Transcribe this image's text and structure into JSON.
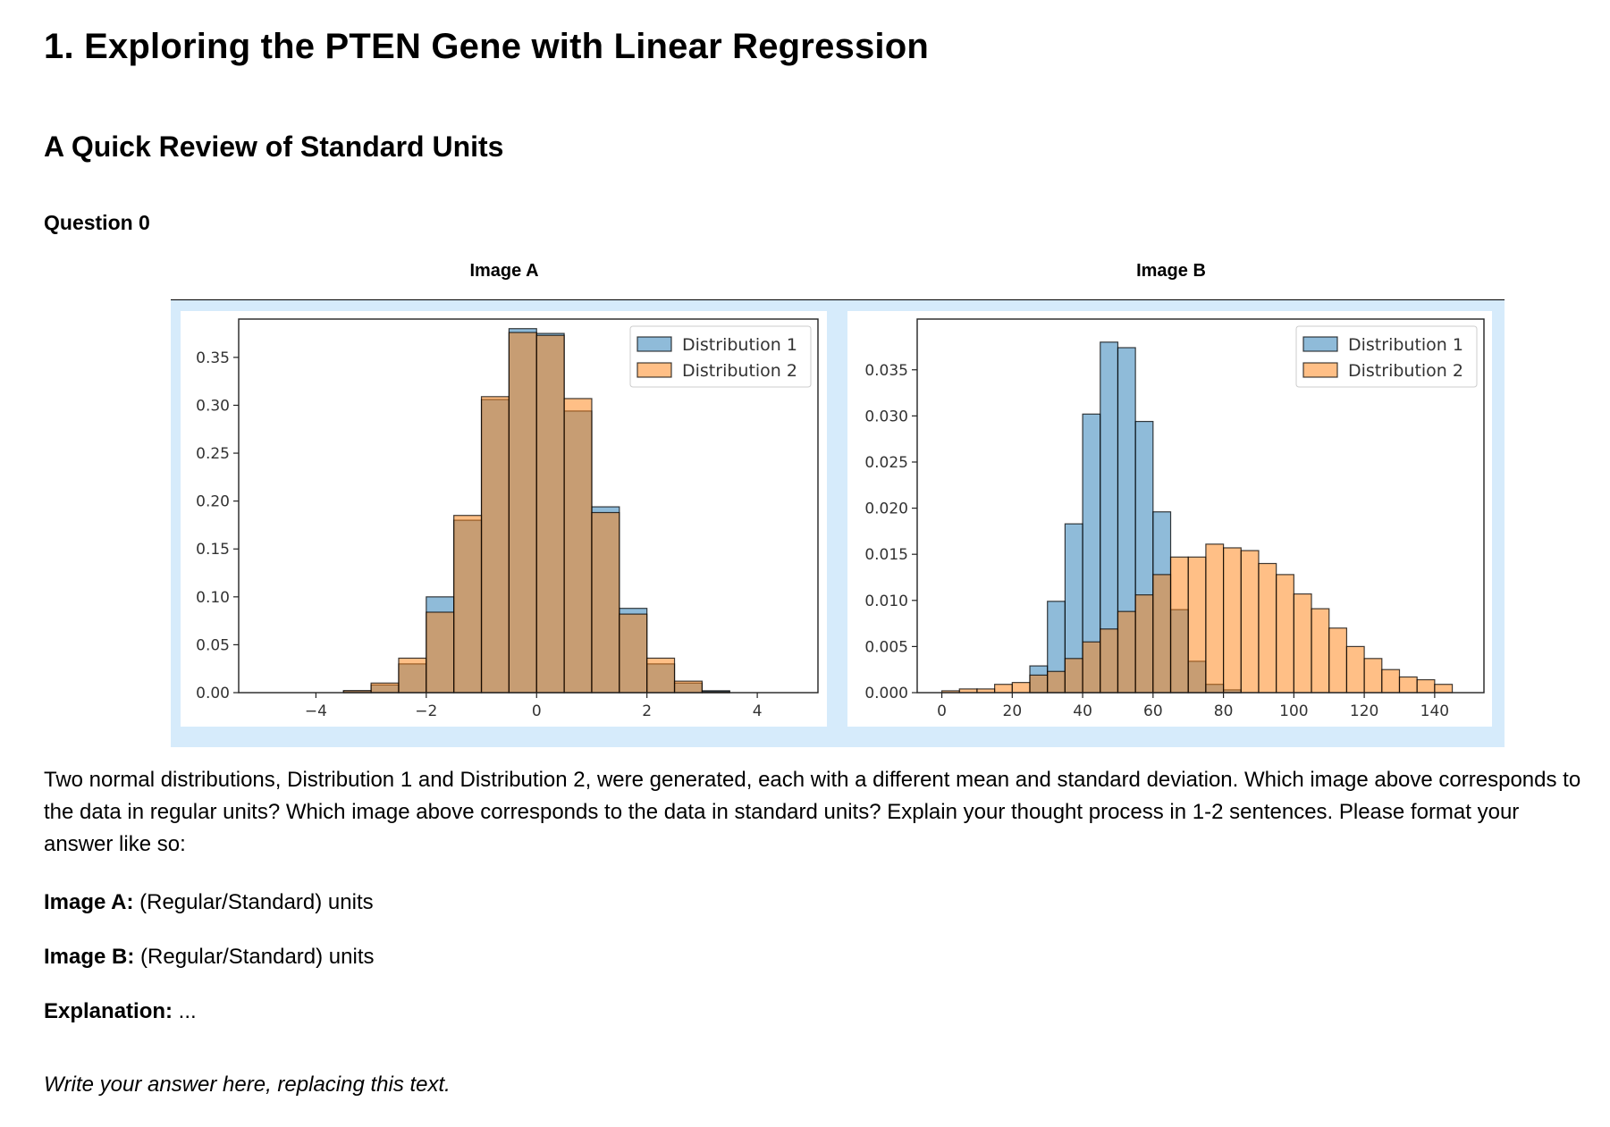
{
  "title": "1. Exploring the PTEN Gene with Linear Regression",
  "subtitle": "A Quick Review of Standard Units",
  "question_label": "Question 0",
  "table": {
    "header_a": "Image A",
    "header_b": "Image B"
  },
  "chart_data": [
    {
      "type": "bar",
      "id": "image_a",
      "title": "",
      "xlabel": "",
      "ylabel": "",
      "xlim": [
        -5.4,
        5.1
      ],
      "ylim": [
        0,
        0.39
      ],
      "xticks": [
        -4,
        -2,
        0,
        2,
        4
      ],
      "xtick_labels": [
        "−4",
        "−2",
        "0",
        "2",
        "4"
      ],
      "yticks": [
        0,
        0.05,
        0.1,
        0.15,
        0.2,
        0.25,
        0.3,
        0.35
      ],
      "ytick_labels": [
        "0.00",
        "0.05",
        "0.10",
        "0.15",
        "0.20",
        "0.25",
        "0.30",
        "0.35"
      ],
      "bin_edges": [
        -3.5,
        -3.0,
        -2.5,
        -2.0,
        -1.5,
        -1.0,
        -0.5,
        0.0,
        0.5,
        1.0,
        1.5,
        2.0,
        2.5,
        3.0,
        3.5
      ],
      "legend_position": "top-right",
      "series": [
        {
          "name": "Distribution 1",
          "color": "#1f77b4",
          "values": [
            0.002,
            0.008,
            0.03,
            0.1,
            0.18,
            0.306,
            0.38,
            0.375,
            0.294,
            0.194,
            0.088,
            0.03,
            0.01,
            0.002
          ]
        },
        {
          "name": "Distribution 2",
          "color": "#ff7f0e",
          "values": [
            0.002,
            0.01,
            0.036,
            0.084,
            0.185,
            0.309,
            0.376,
            0.373,
            0.307,
            0.188,
            0.082,
            0.036,
            0.012,
            0.001
          ]
        }
      ]
    },
    {
      "type": "bar",
      "id": "image_b",
      "title": "",
      "xlabel": "",
      "ylabel": "",
      "xlim": [
        -7,
        154
      ],
      "ylim": [
        0,
        0.0405
      ],
      "xticks": [
        0,
        20,
        40,
        60,
        80,
        100,
        120,
        140
      ],
      "xtick_labels": [
        "0",
        "20",
        "40",
        "60",
        "80",
        "100",
        "120",
        "140"
      ],
      "yticks": [
        0,
        0.005,
        0.01,
        0.015,
        0.02,
        0.025,
        0.03,
        0.035
      ],
      "ytick_labels": [
        "0.000",
        "0.005",
        "0.010",
        "0.015",
        "0.020",
        "0.025",
        "0.030",
        "0.035"
      ],
      "legend_position": "top-right",
      "series": [
        {
          "name": "Distribution 1",
          "color": "#1f77b4",
          "bin_start": 25,
          "bin_width": 5,
          "values": [
            0.0029,
            0.0099,
            0.0183,
            0.0302,
            0.038,
            0.0374,
            0.0294,
            0.0196,
            0.009,
            0.0034,
            0.0009,
            0.0003
          ]
        },
        {
          "name": "Distribution 2",
          "color": "#ff7f0e",
          "bin_start": 0,
          "bin_width": 5,
          "values": [
            0.0002,
            0.0004,
            0.0004,
            0.0009,
            0.0011,
            0.0019,
            0.0023,
            0.0037,
            0.0055,
            0.0069,
            0.0088,
            0.0106,
            0.0128,
            0.0147,
            0.0147,
            0.0161,
            0.0157,
            0.0154,
            0.014,
            0.0128,
            0.0107,
            0.0091,
            0.007,
            0.005,
            0.0037,
            0.0025,
            0.0017,
            0.0014,
            0.0009
          ]
        }
      ]
    }
  ],
  "paragraph": "Two normal distributions, Distribution 1 and Distribution 2, were generated, each with a different mean and standard deviation. Which image above corresponds to the data in regular units? Which image above corresponds to the data in standard units? Explain your thought process in 1-2 sentences. Please format your answer like so:",
  "format_lines": {
    "a_label": "Image A:",
    "a_value": " (Regular/Standard) units",
    "b_label": "Image B:",
    "b_value": " (Regular/Standard) units",
    "exp_label": "Explanation:",
    "exp_value": " ..."
  },
  "answer_placeholder": "Write your answer here, replacing this text."
}
